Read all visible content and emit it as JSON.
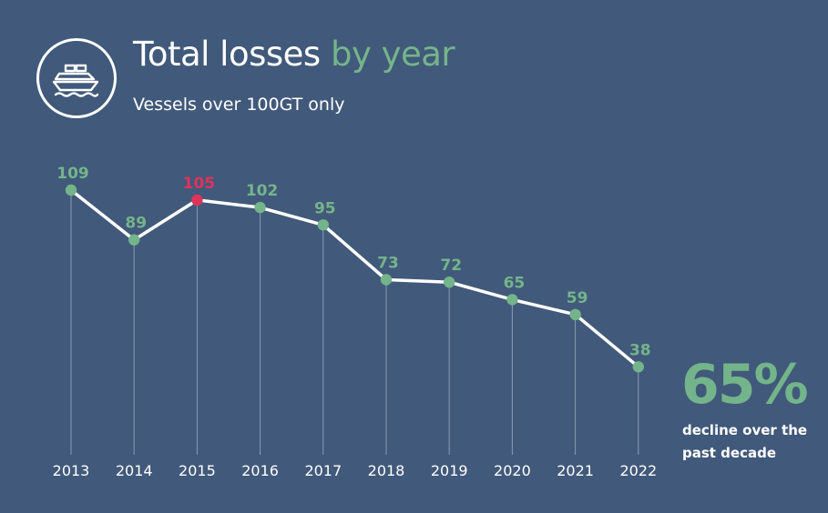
{
  "header": {
    "title_main": "Total losses ",
    "title_accent": "by year",
    "subtitle": "Vessels over 100GT only",
    "icon": "ship-icon"
  },
  "chart_data": {
    "type": "line",
    "title": "Total losses by year",
    "subtitle": "Vessels over 100GT only",
    "categories": [
      "2013",
      "2014",
      "2015",
      "2016",
      "2017",
      "2018",
      "2019",
      "2020",
      "2021",
      "2022"
    ],
    "values": [
      109,
      89,
      105,
      102,
      95,
      73,
      72,
      65,
      59,
      38
    ],
    "labels": [
      "109",
      "89",
      "105",
      "102",
      "95",
      "73",
      "72",
      "65",
      "59",
      "38"
    ],
    "highlight_index": 2,
    "grid": "vertical-lines",
    "legend": "none"
  },
  "stat": {
    "value": "65%",
    "caption": "decline over the past decade"
  },
  "colors": {
    "background": "#41597a",
    "accent": "#74b48a",
    "highlight": "#e0335a",
    "line": "#ffffff",
    "gridline": "#8c9bb0"
  }
}
